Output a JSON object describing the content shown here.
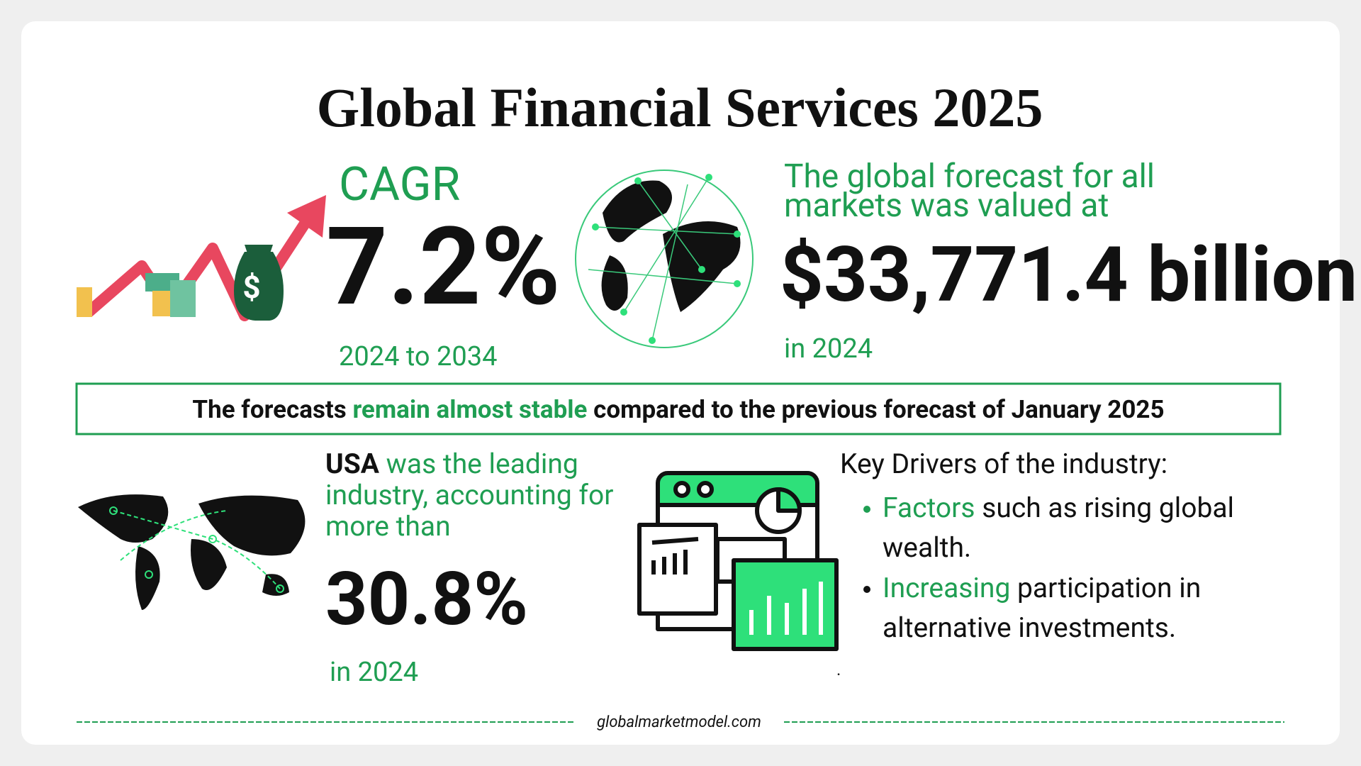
{
  "title": "Global Financial Services 2025",
  "cagr": {
    "label": "CAGR",
    "value": "7.2%",
    "period": "2024 to 2034"
  },
  "forecast": {
    "text_line1": "The global forecast for all",
    "text_line2": "markets was valued at",
    "value": "$33,771.4 billion",
    "period": "in 2024"
  },
  "banner": {
    "part1": "The forecasts ",
    "highlight": "remain almost stable",
    "part2": " compared to the previous forecast of January 2025"
  },
  "usa": {
    "country": "USA",
    "text_line1": " was the leading",
    "text_line2": "industry, accounting for",
    "text_line3": "more than",
    "value": "30.8%",
    "period": "in 2024"
  },
  "drivers": {
    "heading": "Key Drivers of the industry:",
    "items": [
      {
        "highlight": "Factors",
        "line1": " such as rising global",
        "line2": "wealth."
      },
      {
        "highlight": "Increasing",
        "line1": " participation in",
        "line2": "alternative investments."
      }
    ],
    "trailing_mark": "."
  },
  "footer": "globalmarketmodel.com"
}
